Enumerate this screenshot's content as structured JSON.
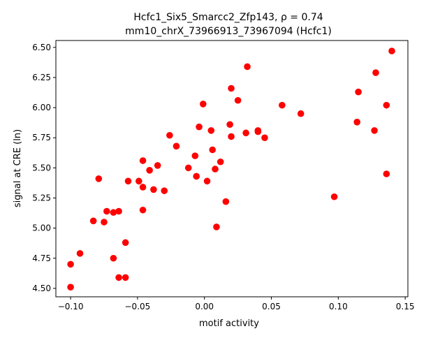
{
  "chart_data": {
    "type": "scatter",
    "title_line1": "Hcfc1_Six5_Smarcc2_Zfp143, ρ = 0.74",
    "title_line2": "mm10_chrX_73966913_73967094 (Hcfc1)",
    "xlabel": "motif activity",
    "ylabel": "signal at CRE (ln)",
    "xlim": [
      -0.111,
      0.152
    ],
    "ylim": [
      4.43,
      6.557
    ],
    "grid": false,
    "color": "#ff0000",
    "xticks": [
      -0.1,
      -0.05,
      0.0,
      0.05,
      0.1,
      0.15
    ],
    "xtick_labels": [
      "−0.10",
      "−0.05",
      "0.00",
      "0.05",
      "0.10",
      "0.15"
    ],
    "yticks": [
      4.5,
      4.75,
      5.0,
      5.25,
      5.5,
      5.75,
      6.0,
      6.25,
      6.5
    ],
    "ytick_labels": [
      "4.50",
      "4.75",
      "5.00",
      "5.25",
      "5.50",
      "5.75",
      "6.00",
      "6.25",
      "6.50"
    ],
    "points": [
      [
        -0.1,
        4.7
      ],
      [
        -0.1,
        4.51
      ],
      [
        -0.093,
        4.79
      ],
      [
        -0.083,
        5.06
      ],
      [
        -0.079,
        5.41
      ],
      [
        -0.075,
        5.05
      ],
      [
        -0.073,
        5.14
      ],
      [
        -0.068,
        5.13
      ],
      [
        -0.068,
        4.75
      ],
      [
        -0.064,
        5.14
      ],
      [
        -0.064,
        4.59
      ],
      [
        -0.059,
        4.88
      ],
      [
        -0.059,
        4.59
      ],
      [
        -0.057,
        5.39
      ],
      [
        -0.049,
        5.39
      ],
      [
        -0.046,
        5.56
      ],
      [
        -0.046,
        5.34
      ],
      [
        -0.046,
        5.15
      ],
      [
        -0.041,
        5.48
      ],
      [
        -0.038,
        5.32
      ],
      [
        -0.035,
        5.52
      ],
      [
        -0.03,
        5.31
      ],
      [
        -0.026,
        5.77
      ],
      [
        -0.021,
        5.68
      ],
      [
        -0.012,
        5.5
      ],
      [
        -0.007,
        5.6
      ],
      [
        -0.006,
        5.43
      ],
      [
        -0.004,
        5.84
      ],
      [
        -0.001,
        6.03
      ],
      [
        0.002,
        5.39
      ],
      [
        0.005,
        5.81
      ],
      [
        0.006,
        5.65
      ],
      [
        0.008,
        5.49
      ],
      [
        0.009,
        5.01
      ],
      [
        0.012,
        5.55
      ],
      [
        0.016,
        5.22
      ],
      [
        0.019,
        5.86
      ],
      [
        0.02,
        6.16
      ],
      [
        0.02,
        5.76
      ],
      [
        0.025,
        6.06
      ],
      [
        0.031,
        5.79
      ],
      [
        0.032,
        6.34
      ],
      [
        0.04,
        5.81
      ],
      [
        0.04,
        5.8
      ],
      [
        0.045,
        5.75
      ],
      [
        0.058,
        6.02
      ],
      [
        0.072,
        5.95
      ],
      [
        0.097,
        5.26
      ],
      [
        0.114,
        5.88
      ],
      [
        0.115,
        6.13
      ],
      [
        0.127,
        5.81
      ],
      [
        0.128,
        6.29
      ],
      [
        0.136,
        6.02
      ],
      [
        0.136,
        5.45
      ],
      [
        0.14,
        6.47
      ]
    ]
  }
}
